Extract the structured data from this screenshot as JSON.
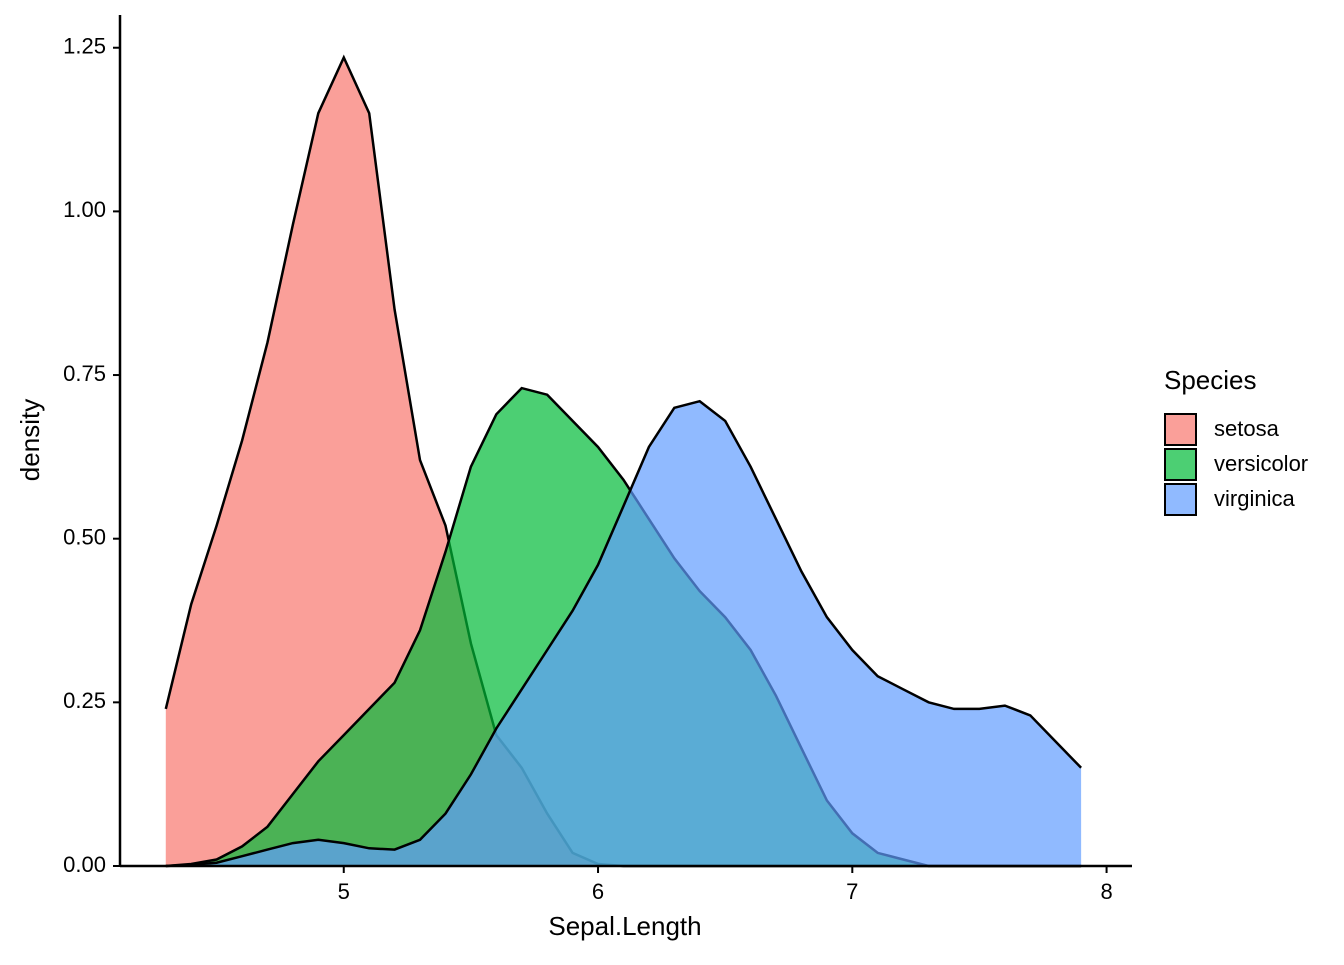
{
  "chart_data": {
    "type": "density",
    "xlabel": "Sepal.Length",
    "ylabel": "density",
    "legend_title": "Species",
    "legend_position": "right",
    "x": [
      4.3,
      4.4,
      4.5,
      4.6,
      4.7,
      4.8,
      4.9,
      5.0,
      5.1,
      5.2,
      5.3,
      5.4,
      5.5,
      5.6,
      5.7,
      5.8,
      5.9,
      6.0,
      6.1,
      6.2,
      6.3,
      6.4,
      6.5,
      6.6,
      6.7,
      6.8,
      6.9,
      7.0,
      7.1,
      7.2,
      7.3,
      7.4,
      7.5,
      7.6,
      7.7,
      7.8,
      7.9
    ],
    "series": [
      {
        "name": "setosa",
        "color": "#F8766D",
        "values": [
          0.24,
          0.4,
          0.52,
          0.65,
          0.8,
          0.98,
          1.15,
          1.235,
          1.15,
          0.85,
          0.62,
          0.52,
          0.34,
          0.2,
          0.15,
          0.08,
          0.02,
          0.003,
          0,
          0,
          0,
          0,
          0,
          0,
          0,
          0,
          0,
          0,
          0,
          0,
          0,
          0,
          0,
          0,
          0,
          0,
          0
        ]
      },
      {
        "name": "versicolor",
        "color": "#00BA38",
        "values": [
          0,
          0.003,
          0.01,
          0.03,
          0.06,
          0.11,
          0.16,
          0.2,
          0.24,
          0.28,
          0.36,
          0.48,
          0.61,
          0.69,
          0.73,
          0.72,
          0.68,
          0.64,
          0.59,
          0.53,
          0.47,
          0.42,
          0.38,
          0.33,
          0.26,
          0.18,
          0.1,
          0.05,
          0.02,
          0.01,
          0,
          0,
          0,
          0,
          0,
          0,
          0
        ]
      },
      {
        "name": "virginica",
        "color": "#619CFF",
        "values": [
          0,
          0.002,
          0.005,
          0.015,
          0.025,
          0.035,
          0.04,
          0.035,
          0.027,
          0.025,
          0.04,
          0.08,
          0.14,
          0.21,
          0.27,
          0.33,
          0.39,
          0.46,
          0.55,
          0.64,
          0.7,
          0.71,
          0.68,
          0.61,
          0.53,
          0.45,
          0.38,
          0.33,
          0.29,
          0.27,
          0.25,
          0.24,
          0.24,
          0.245,
          0.23,
          0.19,
          0.15
        ]
      }
    ],
    "fill_opacity": 0.7,
    "xlim": [
      4.12,
      8.1
    ],
    "ylim": [
      0,
      1.3
    ],
    "xticks": [
      5,
      6,
      7,
      8
    ],
    "yticks": [
      {
        "value": 0,
        "label": "0.00"
      },
      {
        "value": 0.25,
        "label": "0.25"
      },
      {
        "value": 0.5,
        "label": "0.50"
      },
      {
        "value": 0.75,
        "label": "0.75"
      },
      {
        "value": 1,
        "label": "1.00"
      },
      {
        "value": 1.25,
        "label": "1.25"
      }
    ]
  }
}
